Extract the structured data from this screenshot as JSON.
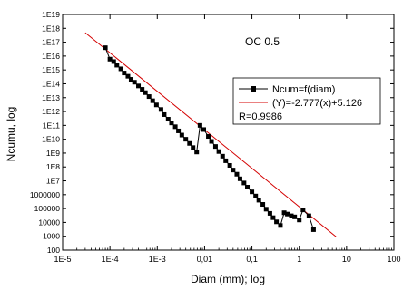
{
  "chart_data": {
    "type": "scatter",
    "xlabel": "Diam (mm); log",
    "ylabel": "Ncumu, log",
    "annotation": "OC 0.5",
    "x_scale": "log",
    "y_scale": "log",
    "xlim": [
      1e-05,
      100
    ],
    "ylim": [
      100,
      1e+19
    ],
    "grid": false,
    "legend_placement": "right",
    "x_ticks": [
      {
        "value": 1e-05,
        "label": "1E-5"
      },
      {
        "value": 0.0001,
        "label": "1E-4"
      },
      {
        "value": 0.001,
        "label": "1E-3"
      },
      {
        "value": 0.01,
        "label": "0,01"
      },
      {
        "value": 0.1,
        "label": "0,1"
      },
      {
        "value": 1,
        "label": "1"
      },
      {
        "value": 10,
        "label": "10"
      },
      {
        "value": 100,
        "label": "100"
      }
    ],
    "y_ticks": [
      {
        "value": 100,
        "label": "100"
      },
      {
        "value": 1000,
        "label": "1000"
      },
      {
        "value": 10000,
        "label": "10000"
      },
      {
        "value": 100000,
        "label": "100000"
      },
      {
        "value": 1000000,
        "label": "1000000"
      },
      {
        "value": 10000000.0,
        "label": "1E7"
      },
      {
        "value": 100000000.0,
        "label": "1E8"
      },
      {
        "value": 1000000000.0,
        "label": "1E9"
      },
      {
        "value": 10000000000.0,
        "label": "1E10"
      },
      {
        "value": 100000000000.0,
        "label": "1E11"
      },
      {
        "value": 1000000000000.0,
        "label": "1E12"
      },
      {
        "value": 10000000000000.0,
        "label": "1E13"
      },
      {
        "value": 100000000000000.0,
        "label": "1E14"
      },
      {
        "value": 1000000000000000.0,
        "label": "1E15"
      },
      {
        "value": 1e+16,
        "label": "1E16"
      },
      {
        "value": 1e+17,
        "label": "1E17"
      },
      {
        "value": 1e+18,
        "label": "1E18"
      },
      {
        "value": 1e+19,
        "label": "1E19"
      }
    ],
    "series": [
      {
        "name": "Ncum=f(diam)",
        "kind": "line-markers",
        "color": "#000000",
        "marker": "square",
        "points": [
          [
            8e-05,
            4e+16
          ],
          [
            0.0001,
            6000000000000000.0
          ],
          [
            0.00012,
            4000000000000000.0
          ],
          [
            0.00014,
            2200000000000000.0
          ],
          [
            0.00017,
            1200000000000000.0
          ],
          [
            0.0002,
            600000000000000.0
          ],
          [
            0.00024,
            350000000000000.0
          ],
          [
            0.00028,
            210000000000000.0
          ],
          [
            0.00033,
            130000000000000.0
          ],
          [
            0.0004,
            70000000000000.0
          ],
          [
            0.00048,
            40000000000000.0
          ],
          [
            0.00056,
            23000000000000.0
          ],
          [
            0.00067,
            12000000000000.0
          ],
          [
            0.0008,
            6000000000000.0
          ],
          [
            0.00096,
            3000000000000.0
          ],
          [
            0.0012,
            1400000000000.0
          ],
          [
            0.0014,
            600000000000.0
          ],
          [
            0.0017,
            280000000000.0
          ],
          [
            0.002,
            150000000000.0
          ],
          [
            0.0024,
            80000000000.0
          ],
          [
            0.0028,
            40000000000.0
          ],
          [
            0.0033,
            20000000000.0
          ],
          [
            0.004,
            10000000000.0
          ],
          [
            0.0048,
            5000000000.0
          ],
          [
            0.0057,
            2500000000.0
          ],
          [
            0.0068,
            1200000000.0
          ],
          [
            0.008,
            100000000000.0
          ],
          [
            0.0096,
            50000000000.0
          ],
          [
            0.012,
            16000000000.0
          ],
          [
            0.014,
            7000000000.0
          ],
          [
            0.017,
            3000000000.0
          ],
          [
            0.02,
            1300000000.0
          ],
          [
            0.024,
            600000000.0
          ],
          [
            0.028,
            280000000.0
          ],
          [
            0.034,
            130000000.0
          ],
          [
            0.04,
            60000000.0
          ],
          [
            0.048,
            30000000.0
          ],
          [
            0.056,
            14000000.0
          ],
          [
            0.068,
            7000000.0
          ],
          [
            0.08,
            3500000.0
          ],
          [
            0.1,
            1600000.0
          ],
          [
            0.12,
            800000.0
          ],
          [
            0.14,
            400000.0
          ],
          [
            0.17,
            200000.0
          ],
          [
            0.2,
            90000.0
          ],
          [
            0.24,
            45000.0
          ],
          [
            0.28,
            22000.0
          ],
          [
            0.33,
            11000.0
          ],
          [
            0.4,
            6000.0
          ],
          [
            0.48,
            50000.0
          ],
          [
            0.56,
            40000.0
          ],
          [
            0.68,
            30000.0
          ],
          [
            0.8,
            25000.0
          ],
          [
            1,
            15000.0
          ],
          [
            1.2,
            80000.0
          ],
          [
            1.6,
            30000.0
          ],
          [
            2,
            3000.0
          ]
        ]
      },
      {
        "name": "(Y)=-2.777(x)+5.126",
        "kind": "fit-line",
        "color": "#d40000",
        "slope": -2.777,
        "intercept": 5.126,
        "x_range": [
          3e-05,
          6
        ]
      }
    ],
    "legend_extra": "R=0.9986"
  }
}
